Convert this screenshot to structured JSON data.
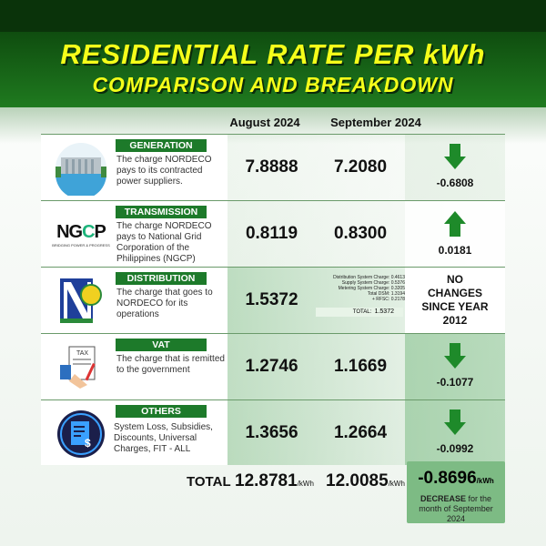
{
  "title": {
    "line1": "RESIDENTIAL RATE PER kWh",
    "line2": "COMPARISON AND BREAKDOWN"
  },
  "columns": {
    "august": "August 2024",
    "september": "September 2024"
  },
  "rows": [
    {
      "label": "GENERATION",
      "desc": "The charge NORDECO pays to its contracted power suppliers.",
      "icon": "power-plant-icon",
      "aug": "7.8888",
      "sep": "7.2080",
      "change": "-0.6808",
      "direction": "down"
    },
    {
      "label": "TRANSMISSION",
      "desc": "The charge NORDECO pays to National Grid Corporation of the Philippines (NGCP)",
      "icon": "ngcp-logo",
      "logo_text": "NGCP",
      "logo_sub": "BRIDGING POWER & PROGRESS",
      "aug": "0.8119",
      "sep": "0.8300",
      "change": "0.0181",
      "direction": "up"
    },
    {
      "label": "DISTRIBUTION",
      "desc": "The charge that goes to NORDECO for its operations",
      "icon": "nordeco-logo",
      "logo_text": "NORDECO",
      "aug": "1.5372",
      "breakdown": [
        "Distribution System Charge: 0.4613",
        "Supply System Charge: 0.5376",
        "Metering System Charge: 0.3205",
        "Total DSM: 1.3194",
        "+ RFSC: 0.2178"
      ],
      "breakdown_total_label": "TOTAL:",
      "breakdown_total": "1.5372",
      "change": "NO CHANGES SINCE YEAR 2012",
      "direction": "none"
    },
    {
      "label": "VAT",
      "desc": "The charge that is remitted to the government",
      "icon": "tax-document-icon",
      "aug": "1.2746",
      "sep": "1.1669",
      "change": "-0.1077",
      "direction": "down"
    },
    {
      "label": "OTHERS",
      "desc": "System Loss, Subsidies, Discounts, Universal Charges, FIT - ALL",
      "icon": "bill-icon",
      "aug": "1.3656",
      "sep": "1.2664",
      "change": "-0.0992",
      "direction": "down"
    }
  ],
  "total": {
    "label": "TOTAL",
    "aug": "12.8781",
    "sep": "12.0085",
    "unit": "/kWh",
    "change": "-0.8696",
    "change_unit": "/kWh",
    "note_bold": "DECREASE",
    "note": " for the month of September 2024"
  },
  "colors": {
    "header": "#0f4d0f",
    "title": "#f5ff1a",
    "label_bg": "#1d7a2a",
    "arrow": "#1e8a2a"
  }
}
